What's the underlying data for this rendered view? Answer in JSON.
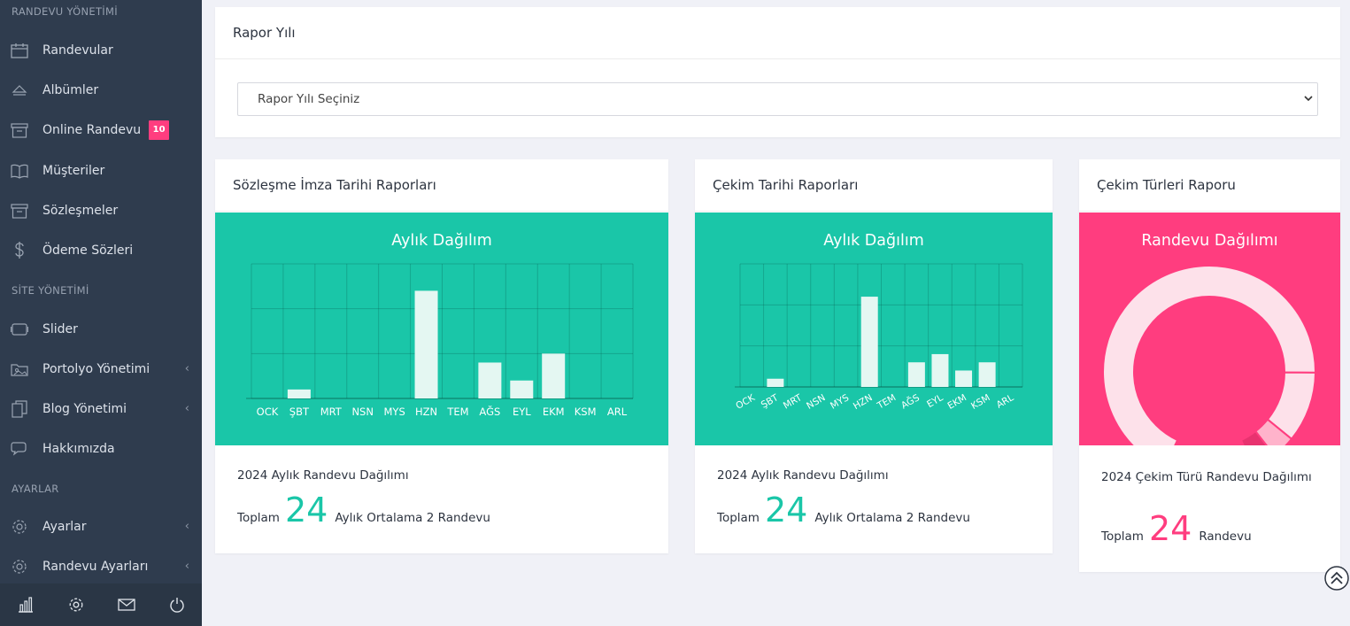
{
  "colors": {
    "sidebar_bg": "#2f3c4e",
    "teal": "#1ac6a8",
    "pink": "#ff3d7f",
    "bar_fill": "#e4f7f2"
  },
  "sidebar": {
    "sections": {
      "randevu": "RANDEVU YÖNETİMİ",
      "site": "SİTE YÖNETİMİ",
      "ayarlar": "AYARLAR"
    },
    "items": [
      {
        "label": "Randevular",
        "icon": "calendar-icon"
      },
      {
        "label": "Albümler",
        "icon": "eject-icon"
      },
      {
        "label": "Online Randevu",
        "icon": "archive-icon",
        "badge": "10"
      },
      {
        "label": "Müşteriler",
        "icon": "book-icon"
      },
      {
        "label": "Sözleşmeler",
        "icon": "archive-box-icon"
      },
      {
        "label": "Ödeme Sözleri",
        "icon": "dollar-icon"
      },
      {
        "label": "Slider",
        "icon": "slider-icon"
      },
      {
        "label": "Portolyo Yönetimi",
        "icon": "folder-image-icon"
      },
      {
        "label": "Blog Yönetimi",
        "icon": "copy-icon"
      },
      {
        "label": "Hakkımızda",
        "icon": "chat-icon"
      },
      {
        "label": "Ayarlar",
        "icon": "gear-icon"
      },
      {
        "label": "Randevu Ayarları",
        "icon": "gear-icon"
      }
    ],
    "footer_icons": [
      "chart-icon",
      "settings-icon",
      "mail-icon",
      "power-icon"
    ]
  },
  "report_year": {
    "title": "Rapor Yılı",
    "select_value": "Rapor Yılı Seçiniz"
  },
  "card1": {
    "title": "Sözleşme İmza Tarihi Raporları",
    "panel_title": "Aylık Dağılım",
    "subtitle": "2024 Aylık Randevu Dağılımı",
    "total_label": "Toplam",
    "total": "24",
    "avg_text": "Aylık Ortalama 2 Randevu"
  },
  "card2": {
    "title": "Çekim Tarihi Raporları",
    "panel_title": "Aylık Dağılım",
    "subtitle": "2024 Aylık Randevu Dağılımı",
    "total_label": "Toplam",
    "total": "24",
    "avg_text": "Aylık Ortalama 2 Randevu"
  },
  "card3": {
    "title": "Çekim Türleri Raporu",
    "panel_title": "Randevu Dağılımı",
    "subtitle": "2024 Çekim Türü Randevu Dağılımı",
    "total_label": "Toplam",
    "total": "24",
    "unit": "Randevu"
  },
  "chart_data": [
    {
      "type": "bar",
      "title": "Aylık Dağılım",
      "categories": [
        "OCK",
        "ŞBT",
        "MRT",
        "NSN",
        "MYS",
        "HZN",
        "TEM",
        "AĞS",
        "EYL",
        "EKM",
        "KSM",
        "ARL"
      ],
      "values": [
        0,
        1,
        0,
        0,
        0,
        12,
        0,
        4,
        2,
        5,
        0,
        0
      ],
      "ylim": [
        0,
        15
      ],
      "grid": true
    },
    {
      "type": "bar",
      "title": "Aylık Dağılım",
      "categories": [
        "OCK",
        "ŞBT",
        "MRT",
        "NSN",
        "MYS",
        "HZN",
        "TEM",
        "AĞS",
        "EYL",
        "EKM",
        "KSM",
        "ARL"
      ],
      "values": [
        0,
        1,
        0,
        0,
        0,
        11,
        0,
        3,
        4,
        2,
        3,
        0
      ],
      "ylim": [
        0,
        15
      ],
      "grid": true
    },
    {
      "type": "pie",
      "title": "Randevu Dağılımı",
      "values": [
        19,
        3,
        1,
        1
      ],
      "colors": [
        "#fde1ea",
        "#fde1ea",
        "#ffb3cb",
        "#e8326f"
      ]
    }
  ]
}
